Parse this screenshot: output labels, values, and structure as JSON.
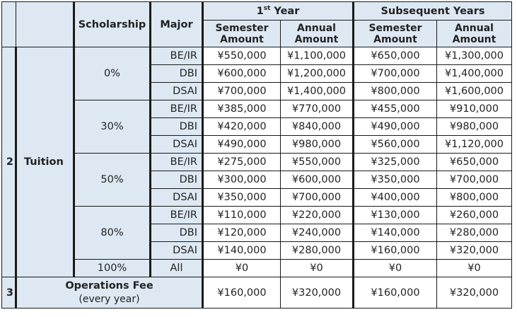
{
  "header": {
    "scholarship": "Scholarship",
    "major": "Major",
    "first_year_base": "1",
    "first_year_sup": "st",
    "first_year_rest": " Year",
    "subsequent_years": "Subsequent Years",
    "semester_amount": "Semester Amount",
    "annual_amount": "Annual Amount"
  },
  "tuition": {
    "row_number": "2",
    "label": "Tuition",
    "groups": [
      {
        "scholarship": "0%",
        "rows": [
          {
            "major": "BE/IR",
            "y1_sem": "¥550,000",
            "y1_ann": "¥1,100,000",
            "sub_sem": "¥650,000",
            "sub_ann": "¥1,300,000"
          },
          {
            "major": "DBI",
            "y1_sem": "¥600,000",
            "y1_ann": "¥1,200,000",
            "sub_sem": "¥700,000",
            "sub_ann": "¥1,400,000"
          },
          {
            "major": "DSAI",
            "y1_sem": "¥700,000",
            "y1_ann": "¥1,400,000",
            "sub_sem": "¥800,000",
            "sub_ann": "¥1,600,000"
          }
        ]
      },
      {
        "scholarship": "30%",
        "rows": [
          {
            "major": "BE/IR",
            "y1_sem": "¥385,000",
            "y1_ann": "¥770,000",
            "sub_sem": "¥455,000",
            "sub_ann": "¥910,000"
          },
          {
            "major": "DBI",
            "y1_sem": "¥420,000",
            "y1_ann": "¥840,000",
            "sub_sem": "¥490,000",
            "sub_ann": "¥980,000"
          },
          {
            "major": "DSAI",
            "y1_sem": "¥490,000",
            "y1_ann": "¥980,000",
            "sub_sem": "¥560,000",
            "sub_ann": "¥1,120,000"
          }
        ]
      },
      {
        "scholarship": "50%",
        "rows": [
          {
            "major": "BE/IR",
            "y1_sem": "¥275,000",
            "y1_ann": "¥550,000",
            "sub_sem": "¥325,000",
            "sub_ann": "¥650,000"
          },
          {
            "major": "DBI",
            "y1_sem": "¥300,000",
            "y1_ann": "¥600,000",
            "sub_sem": "¥350,000",
            "sub_ann": "¥700,000"
          },
          {
            "major": "DSAI",
            "y1_sem": "¥350,000",
            "y1_ann": "¥700,000",
            "sub_sem": "¥400,000",
            "sub_ann": "¥800,000"
          }
        ]
      },
      {
        "scholarship": "80%",
        "rows": [
          {
            "major": "BE/IR",
            "y1_sem": "¥110,000",
            "y1_ann": "¥220,000",
            "sub_sem": "¥130,000",
            "sub_ann": "¥260,000"
          },
          {
            "major": "DBI",
            "y1_sem": "¥120,000",
            "y1_ann": "¥240,000",
            "sub_sem": "¥140,000",
            "sub_ann": "¥280,000"
          },
          {
            "major": "DSAI",
            "y1_sem": "¥140,000",
            "y1_ann": "¥280,000",
            "sub_sem": "¥160,000",
            "sub_ann": "¥320,000"
          }
        ]
      }
    ],
    "full": {
      "scholarship": "100%",
      "major": "All",
      "y1_sem": "¥0",
      "y1_ann": "¥0",
      "sub_sem": "¥0",
      "sub_ann": "¥0"
    }
  },
  "operations": {
    "row_number": "3",
    "label_line1": "Operations Fee",
    "label_line2": "(every year)",
    "y1_sem": "¥160,000",
    "y1_ann": "¥320,000",
    "sub_sem": "¥160,000",
    "sub_ann": "¥320,000"
  }
}
